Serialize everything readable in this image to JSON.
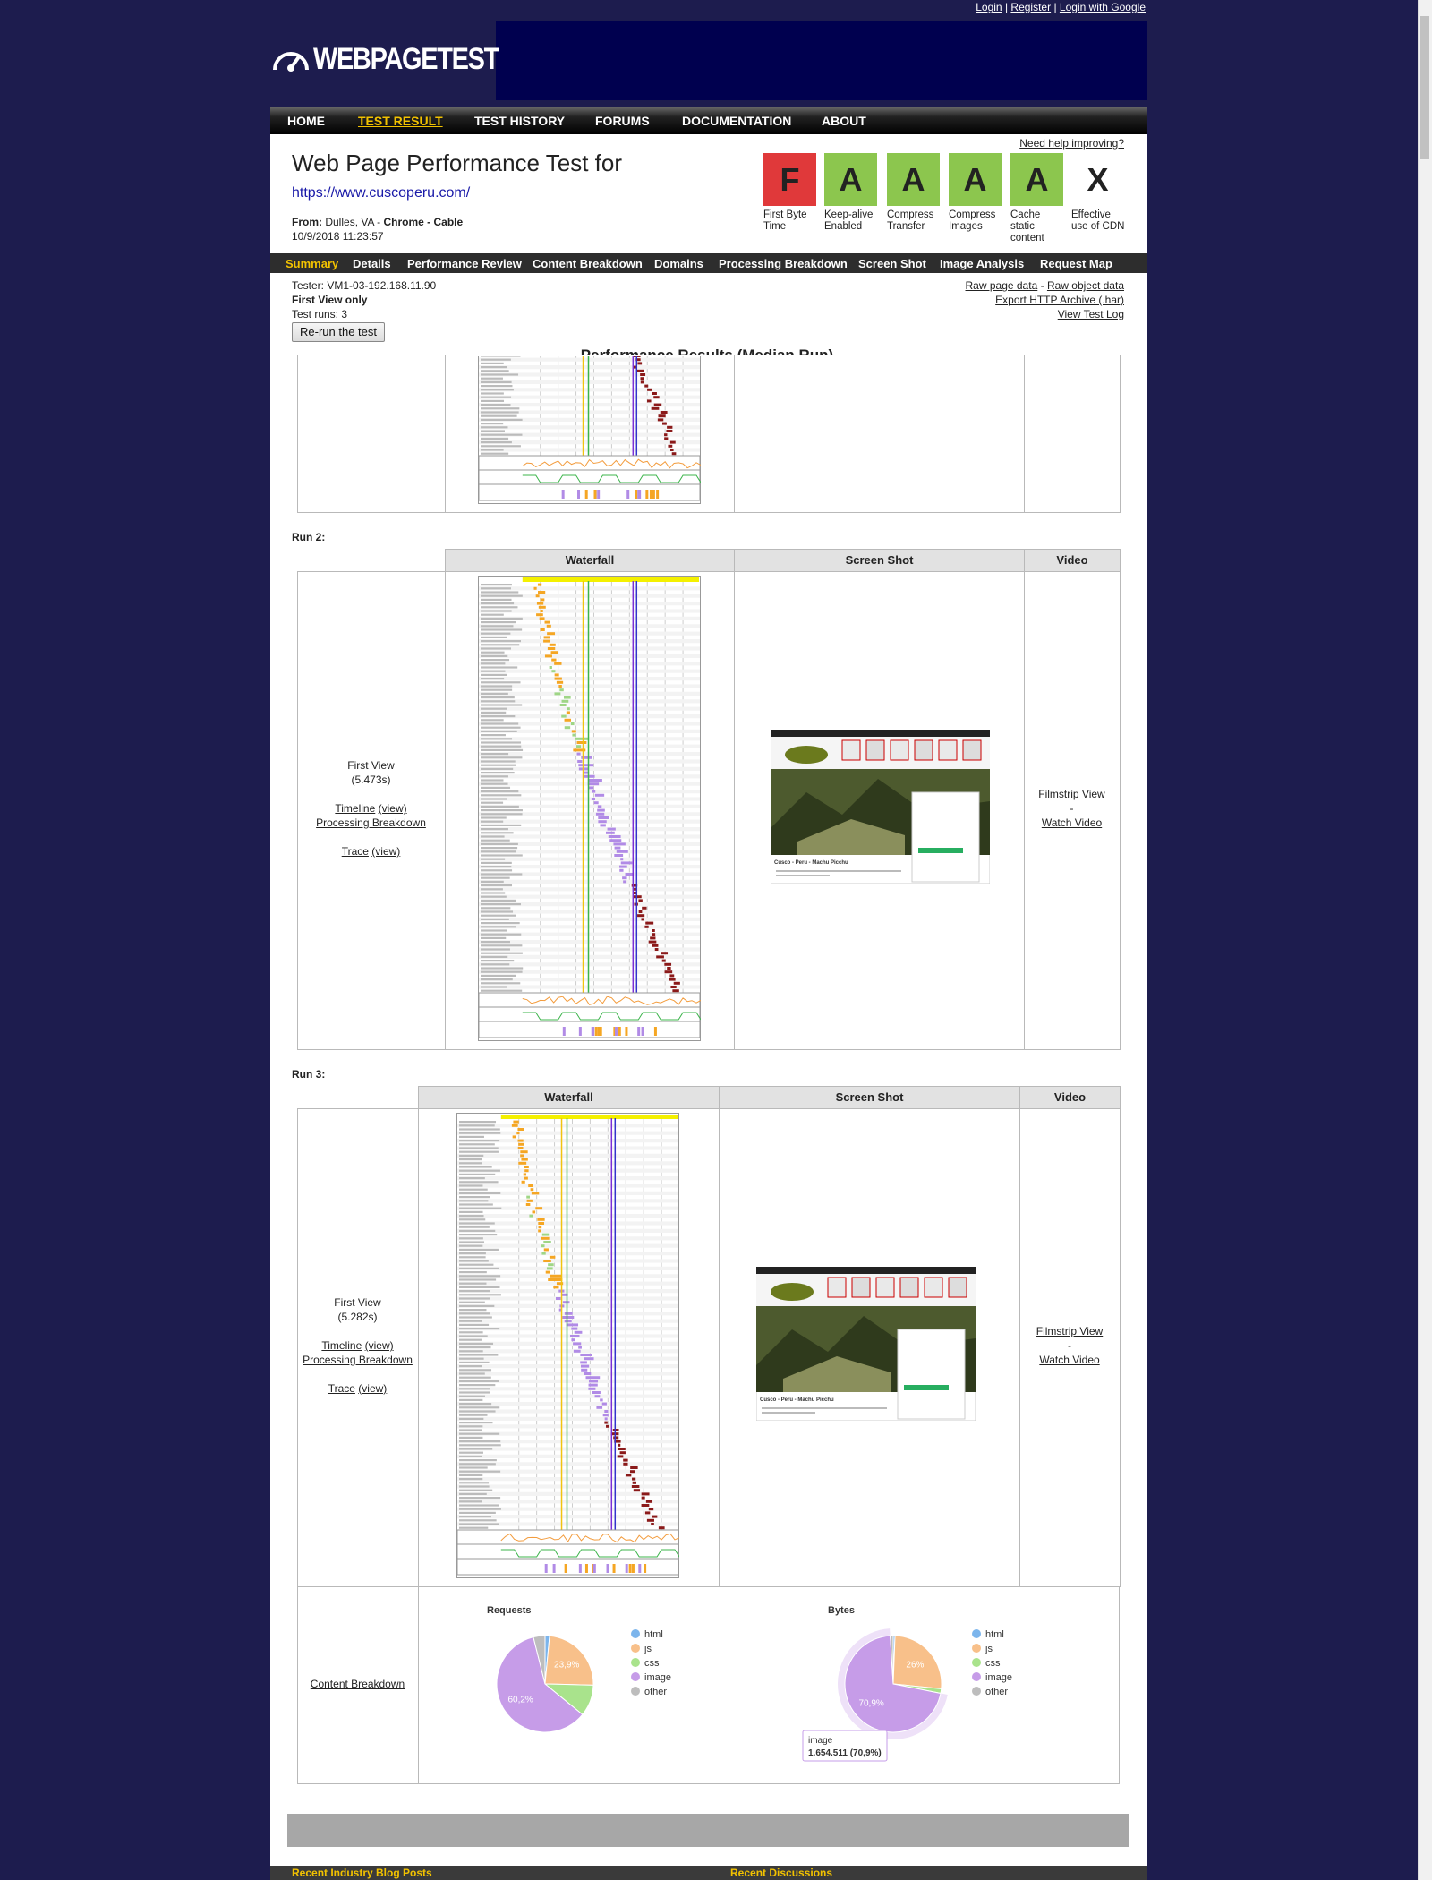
{
  "top_links": {
    "login": "Login",
    "sep": "|",
    "register": "Register",
    "google": "Login with Google"
  },
  "logo": "WEBPAGETEST",
  "nav": [
    "HOME",
    "TEST RESULT",
    "TEST HISTORY",
    "FORUMS",
    "DOCUMENTATION",
    "ABOUT"
  ],
  "header": {
    "title": "Web Page Performance Test for",
    "url": "https://www.cuscoperu.com/",
    "from_label": "From:",
    "location": "Dulles, VA -",
    "config": "Chrome - Cable",
    "date": "10/9/2018 11:23:57",
    "help": "Need help improving?"
  },
  "grades": [
    {
      "grade": "F",
      "label": "First Byte Time"
    },
    {
      "grade": "A",
      "label": "Keep-alive Enabled"
    },
    {
      "grade": "A",
      "label": "Compress Transfer"
    },
    {
      "grade": "A",
      "label": "Compress Images"
    },
    {
      "grade": "A",
      "label": "Cache static content"
    },
    {
      "grade": "X",
      "label": "Effective use of CDN"
    }
  ],
  "tabs": [
    "Summary",
    "Details",
    "Performance Review",
    "Content Breakdown",
    "Domains",
    "Processing Breakdown",
    "Screen Shot",
    "Image Analysis",
    "Request Map"
  ],
  "test_info": {
    "tester": "Tester: VM1-03-192.168.11.90",
    "view": "First View only",
    "runs_label": "Test runs:",
    "runs": 3,
    "rerun": "Re-run the test"
  },
  "data_links": {
    "raw_page": "Raw page data",
    "dash": "-",
    "raw_object": "Raw object data",
    "har": "Export HTTP Archive (.har)",
    "log": "View Test Log"
  },
  "section_title": "Performance Results (Median Run)",
  "runs": [
    {
      "label": "Run 2:",
      "headers": [
        "Waterfall",
        "Screen Shot",
        "Video"
      ],
      "view": "First View",
      "time": "(5.473s)",
      "timeline": "Timeline",
      "timeline_view": "(view)",
      "processing": "Processing Breakdown",
      "trace": "Trace",
      "trace_view": "(view)",
      "filmstrip": "Filmstrip View",
      "dash": "-",
      "watch": "Watch Video",
      "caption": "Cusco - Peru - Machu Picchu"
    },
    {
      "label": "Run 3:",
      "headers": [
        "Waterfall",
        "Screen Shot",
        "Video"
      ],
      "view": "First View",
      "time": "(5.282s)",
      "timeline": "Timeline",
      "timeline_view": "(view)",
      "processing": "Processing Breakdown",
      "trace": "Trace",
      "trace_view": "(view)",
      "filmstrip": "Filmstrip View",
      "dash": "-",
      "watch": "Watch Video",
      "caption": "Cusco - Peru - Machu Picchu"
    }
  ],
  "content_breakdown": "Content Breakdown",
  "chart_data": [
    {
      "type": "pie",
      "title": "Requests",
      "categories": [
        "html",
        "js",
        "css",
        "image",
        "other"
      ],
      "values": [
        1.5,
        23.9,
        10.5,
        60.2,
        3.9
      ],
      "value_labels": [
        null,
        "23,9%",
        null,
        "60,2%",
        null
      ],
      "colors": [
        "#7cb5ec",
        "#f8c08a",
        "#a9e38c",
        "#c69ce8",
        "#bdbdbd"
      ]
    },
    {
      "type": "pie",
      "title": "Bytes",
      "categories": [
        "html",
        "js",
        "css",
        "image",
        "other"
      ],
      "values": [
        0.6,
        26,
        1.5,
        70.9,
        1
      ],
      "value_labels": [
        null,
        "26%",
        null,
        "70,9%",
        null
      ],
      "colors": [
        "#7cb5ec",
        "#f8c08a",
        "#a9e38c",
        "#c69ce8",
        "#bdbdbd"
      ],
      "tooltip": {
        "name": "image",
        "text": "1.654.511 (70,9%)"
      }
    }
  ],
  "footer": {
    "blog": "Recent Industry Blog Posts",
    "discussions": "Recent Discussions"
  }
}
